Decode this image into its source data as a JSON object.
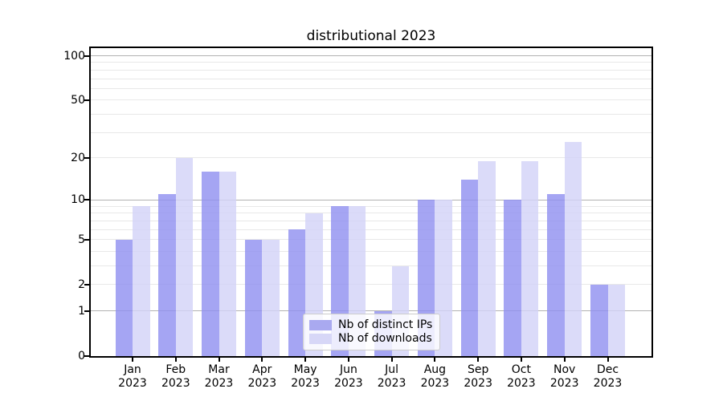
{
  "chart_data": {
    "type": "bar",
    "title": "distributional 2023",
    "categories": [
      "Jan 2023",
      "Feb 2023",
      "Mar 2023",
      "Apr 2023",
      "May 2023",
      "Jun 2023",
      "Jul 2023",
      "Aug 2023",
      "Sep 2023",
      "Oct 2023",
      "Nov 2023",
      "Dec 2023"
    ],
    "x_tick_months": [
      "Jan",
      "Feb",
      "Mar",
      "Apr",
      "May",
      "Jun",
      "Jul",
      "Aug",
      "Sep",
      "Oct",
      "Nov",
      "Dec"
    ],
    "x_tick_year": "2023",
    "series": [
      {
        "name": "Nb of distinct IPs",
        "values": [
          5,
          11,
          16,
          5,
          6,
          9,
          1,
          10,
          14,
          10,
          11,
          2
        ],
        "color": "rgba(143,143,240,0.8)",
        "legend_color": "#a9a9f0"
      },
      {
        "name": "Nb of downloads",
        "values": [
          9,
          20,
          16,
          5,
          8,
          9,
          3,
          10,
          19,
          19,
          26,
          2
        ],
        "color": "rgba(210,210,247,0.8)",
        "legend_color": "#d7d7f7"
      }
    ],
    "yscale": "log1p",
    "ylim": [
      0,
      112
    ],
    "y_tick_labels": [
      "100",
      "50",
      "20",
      "10",
      "5",
      "2",
      "1",
      "0"
    ],
    "y_tick_values": [
      100,
      50,
      20,
      10,
      5,
      2,
      1,
      0
    ],
    "y_major_gridlines": [
      1,
      10,
      100
    ],
    "y_minor_gridlines": [
      2,
      3,
      4,
      5,
      6,
      7,
      8,
      9,
      20,
      30,
      40,
      50,
      60,
      70,
      80,
      90
    ],
    "grid": true,
    "legend_position": "lower center"
  },
  "colors": {
    "background": "#ffffff",
    "spine": "#000000",
    "grid_major": "#b2b2b2",
    "grid_minor": "#e8e8e8",
    "legend_border": "#cccccc",
    "text": "#000000"
  }
}
